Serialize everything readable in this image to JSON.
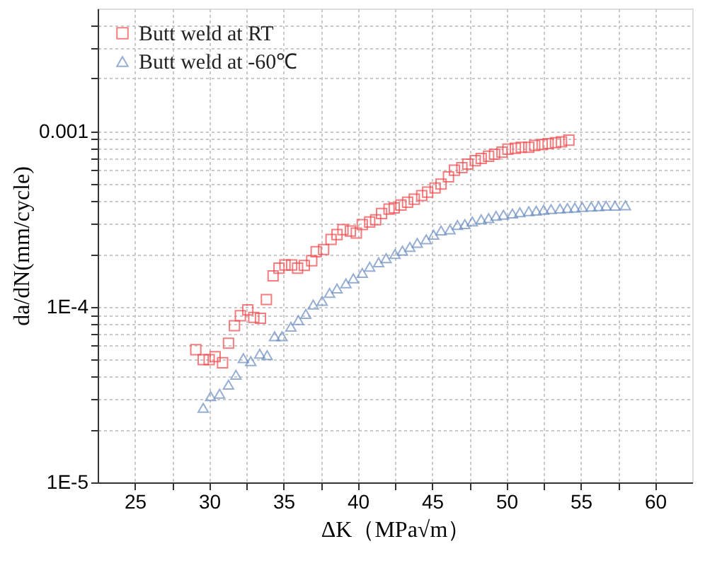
{
  "chart_data": {
    "type": "scatter",
    "xlabel": "ΔK（MPa√m）",
    "ylabel": "da/dN(mm/cycle)",
    "log": "y",
    "grid": true,
    "legend": "top left",
    "xlim": [
      22.5,
      62.5
    ],
    "ylim": [
      1e-05,
      0.005
    ],
    "xticks": [
      25,
      {
        "value": 27.5,
        "label": null
      },
      30,
      {
        "value": 32.5,
        "label": null
      },
      35,
      {
        "value": 37.5,
        "label": null
      },
      40,
      {
        "value": 42.5,
        "label": null
      },
      45,
      {
        "value": 47.5,
        "label": null
      },
      50,
      {
        "value": 52.5,
        "label": null
      },
      55,
      {
        "value": 57.5,
        "label": null
      },
      60
    ],
    "yticks": [
      {
        "value": 1e-05,
        "label": "1E-5"
      },
      {
        "value": 2e-05,
        "label": null
      },
      {
        "value": 3e-05,
        "label": null
      },
      {
        "value": 4e-05,
        "label": null
      },
      {
        "value": 5e-05,
        "label": null
      },
      {
        "value": 6e-05,
        "label": null
      },
      {
        "value": 7e-05,
        "label": null
      },
      {
        "value": 8e-05,
        "label": null
      },
      {
        "value": 9e-05,
        "label": null
      },
      {
        "value": 0.0001,
        "label": "1E-4"
      },
      {
        "value": 0.0002,
        "label": null
      },
      {
        "value": 0.0003,
        "label": null
      },
      {
        "value": 0.0004,
        "label": null
      },
      {
        "value": 0.0005,
        "label": null
      },
      {
        "value": 0.0006,
        "label": null
      },
      {
        "value": 0.0007,
        "label": null
      },
      {
        "value": 0.0008,
        "label": null
      },
      {
        "value": 0.0009,
        "label": null
      },
      {
        "value": 0.001,
        "label": "0.001"
      },
      {
        "value": 0.002,
        "label": null
      },
      {
        "value": 0.003,
        "label": null
      },
      {
        "value": 0.004,
        "label": null
      }
    ],
    "series": [
      {
        "name": "Butt weld at RT",
        "color": "#f0474a",
        "marker": "square",
        "x": [
          29.1,
          29.6,
          30.0,
          30.4,
          30.9,
          31.3,
          31.7,
          32.1,
          32.6,
          33.0,
          33.45,
          33.85,
          34.3,
          34.7,
          35.1,
          35.55,
          35.95,
          36.4,
          36.9,
          37.2,
          37.7,
          38.2,
          38.6,
          39.0,
          39.5,
          39.9,
          40.3,
          40.8,
          41.2,
          41.6,
          42.1,
          42.45,
          42.9,
          43.35,
          43.8,
          44.3,
          44.7,
          45.2,
          45.6,
          46.1,
          46.5,
          47.0,
          47.4,
          47.9,
          48.3,
          48.8,
          49.2,
          49.7,
          50.1,
          50.6,
          51.0,
          51.5,
          51.9,
          52.4,
          52.8,
          53.3,
          53.7,
          54.2
        ],
        "values": [
          5.7e-05,
          5e-05,
          5e-05,
          5.2e-05,
          4.8e-05,
          6.2e-05,
          7.8e-05,
          8.9e-05,
          9.6e-05,
          8.7e-05,
          8.6e-05,
          0.00011,
          0.00015,
          0.000166,
          0.000173,
          0.000173,
          0.000166,
          0.000172,
          0.000183,
          0.000206,
          0.000212,
          0.000242,
          0.000258,
          0.000275,
          0.00027,
          0.000263,
          0.000294,
          0.000304,
          0.000313,
          0.00034,
          0.00036,
          0.000366,
          0.00038,
          0.000394,
          0.00041,
          0.00043,
          0.00045,
          0.000475,
          0.0005,
          0.00055,
          0.0006,
          0.00062,
          0.00065,
          0.00068,
          0.0007,
          0.00072,
          0.00074,
          0.00076,
          0.00079,
          0.0008,
          0.00081,
          0.00081,
          0.00083,
          0.00084,
          0.00085,
          0.00086,
          0.00087,
          0.00089
        ]
      },
      {
        "name": "Butt weld at -60℃",
        "color": "#6a8cbf",
        "marker": "triangle",
        "x": [
          29.6,
          30.1,
          30.7,
          31.3,
          31.8,
          32.3,
          32.8,
          33.4,
          33.9,
          34.4,
          34.9,
          35.5,
          36.0,
          36.5,
          37.0,
          37.6,
          38.1,
          38.6,
          39.2,
          39.7,
          40.3,
          40.8,
          41.4,
          41.9,
          42.5,
          43.0,
          43.5,
          44.0,
          44.6,
          45.1,
          45.6,
          46.2,
          46.7,
          47.2,
          47.7,
          48.3,
          48.8,
          49.3,
          49.8,
          50.4,
          50.9,
          51.5,
          52.0,
          52.5,
          53.0,
          53.6,
          54.1,
          54.6,
          55.1,
          55.7,
          56.2,
          56.7,
          57.3,
          58.0
        ],
        "values": [
          2.66e-05,
          3.1e-05,
          3.2e-05,
          3.6e-05,
          4.1e-05,
          5.1e-05,
          4.9e-05,
          5.4e-05,
          5.3e-05,
          6.8e-05,
          6.8e-05,
          7.7e-05,
          8.4e-05,
          9.1e-05,
          0.000103,
          0.000108,
          0.00012,
          0.000127,
          0.000136,
          0.000145,
          0.000156,
          0.000169,
          0.000179,
          0.000189,
          0.0002,
          0.000209,
          0.000219,
          0.000231,
          0.000242,
          0.000257,
          0.000272,
          0.000276,
          0.000292,
          0.000296,
          0.000306,
          0.000315,
          0.00032,
          0.00033,
          0.000334,
          0.00034,
          0.000345,
          0.00035,
          0.000353,
          0.000357,
          0.00036,
          0.000363,
          0.000365,
          0.000367,
          0.00037,
          0.000372,
          0.000374,
          0.000376,
          0.000376,
          0.000378
        ]
      }
    ]
  }
}
